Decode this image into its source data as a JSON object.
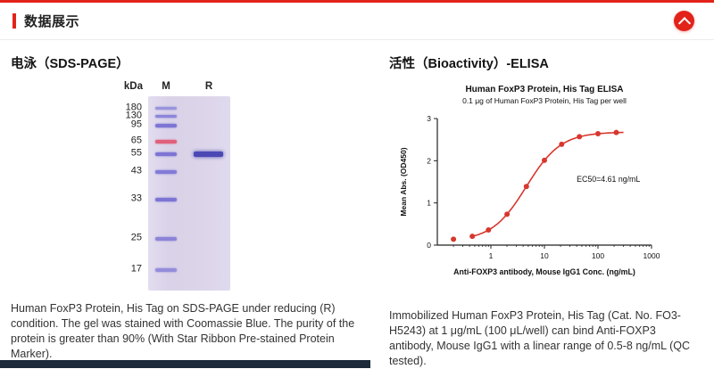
{
  "colors": {
    "accent_red": "#E2231A",
    "gel_background": "#DCD5E9",
    "curve_red": "#D7372D",
    "footer_strip_navy": "#1C2A3A"
  },
  "header": {
    "title": "数据展示",
    "collapse_icon": "chevron-up"
  },
  "left": {
    "heading": "电泳（SDS-PAGE）",
    "gel": {
      "unit_label": "kDa",
      "lane_m_label": "M",
      "lane_r_label": "R",
      "marker_bands": [
        {
          "kda": "180",
          "top_pct": 5.5,
          "color": "#9A94DD",
          "h": 3
        },
        {
          "kda": "130",
          "top_pct": 9.8,
          "color": "#8C86DA",
          "h": 3
        },
        {
          "kda": "95",
          "top_pct": 14.4,
          "color": "#7D74D4",
          "h": 4
        },
        {
          "kda": "65",
          "top_pct": 22.3,
          "color": "#E0607C",
          "h": 4
        },
        {
          "kda": "55",
          "top_pct": 28.8,
          "color": "#7D74D4",
          "h": 4
        },
        {
          "kda": "43",
          "top_pct": 38.1,
          "color": "#837BD6",
          "h": 3.5
        },
        {
          "kda": "33",
          "top_pct": 52.1,
          "color": "#7D74D4",
          "h": 4
        },
        {
          "kda": "25",
          "top_pct": 72.6,
          "color": "#8C84D8",
          "h": 4
        },
        {
          "kda": "17",
          "top_pct": 88.4,
          "color": "#958DDB",
          "h": 4
        }
      ],
      "sample_band": {
        "kda": "55",
        "top_pct": 28.6,
        "color": "#4B48B4",
        "h": 6
      }
    },
    "caption": "Human FoxP3 Protein, His Tag on SDS-PAGE under reducing (R) condition. The gel was stained with Coomassie Blue. The purity of the protein is greater than 90% (With Star Ribbon Pre-stained Protein Marker)."
  },
  "right": {
    "heading": "活性（Bioactivity）-ELISA",
    "caption": "Immobilized Human FoxP3 Protein, His Tag (Cat. No. FO3-H5243) at 1 μg/mL (100 μL/well) can bind Anti-FOXP3 antibody, Mouse IgG1 with a linear range of 0.5-8 ng/mL (QC tested)."
  },
  "chart_data": {
    "type": "scatter",
    "title": "Human FoxP3 Protein, His Tag ELISA",
    "subtitle": "0.1 μg of Human FoxP3 Protein, His Tag per well",
    "xlabel": "Anti-FOXP3 antibody, Mouse IgG1 Conc. (ng/mL)",
    "ylabel": "Mean Abs. (OD450)",
    "x_scale": "log",
    "xlim": [
      0.1,
      1000
    ],
    "ylim": [
      0,
      3
    ],
    "x_ticks": [
      1,
      10,
      100,
      1000
    ],
    "y_ticks": [
      0,
      1,
      2,
      3
    ],
    "grid": false,
    "legend_position": "none",
    "annotation": "EC50=4.61 ng/mL",
    "fit_curve": {
      "model": "4PL",
      "bottom": 0.1,
      "top": 2.68,
      "ec50": 4.61,
      "hill": 1.35
    },
    "points": [
      {
        "x": 0.2,
        "y": 0.14
      },
      {
        "x": 0.45,
        "y": 0.21
      },
      {
        "x": 0.9,
        "y": 0.36
      },
      {
        "x": 2.0,
        "y": 0.73
      },
      {
        "x": 4.6,
        "y": 1.39
      },
      {
        "x": 10,
        "y": 2.01
      },
      {
        "x": 21,
        "y": 2.39
      },
      {
        "x": 45,
        "y": 2.57
      },
      {
        "x": 100,
        "y": 2.64
      },
      {
        "x": 220,
        "y": 2.67
      }
    ]
  }
}
